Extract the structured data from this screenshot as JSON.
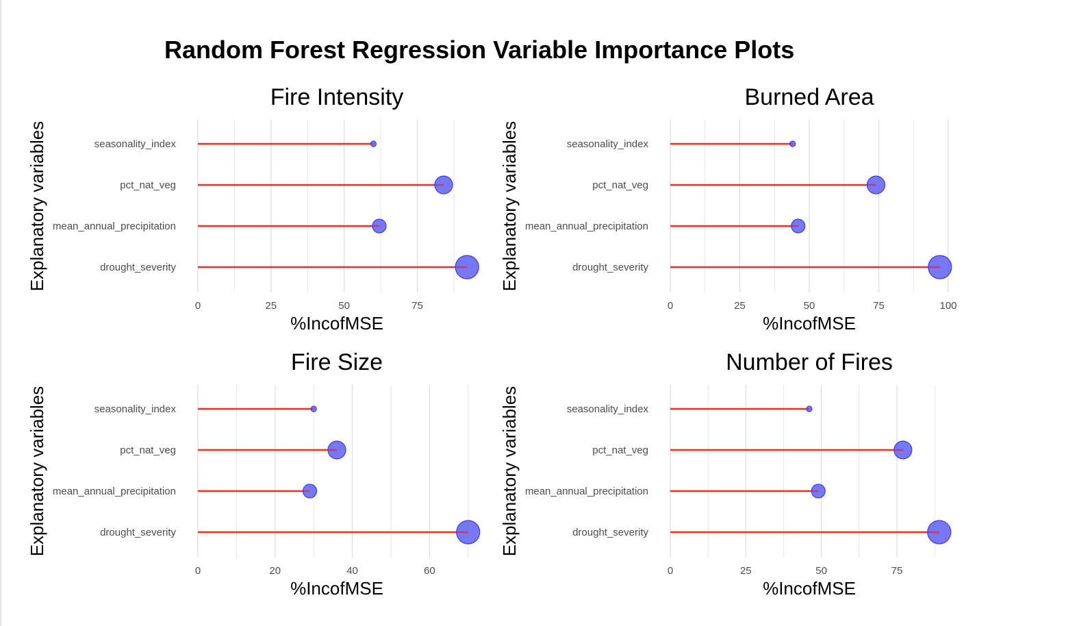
{
  "title": "Random Forest Regression Variable Importance Plots",
  "colors": {
    "stem": "#ff2a1a",
    "point_fill": "#5a5af0",
    "point_stroke": "#3a3af0",
    "grid": "#dcdcdc"
  },
  "chart_data": [
    {
      "type": "lollipop",
      "title": "Fire Intensity",
      "xlabel": "%IncofMSE",
      "ylabel": "Explanatory variables",
      "categories": [
        "seasonality_index",
        "pct_nat_veg",
        "mean_annual_precipitation",
        "drought_severity"
      ],
      "values": [
        60,
        84,
        62,
        92
      ],
      "xlim": [
        0,
        95
      ],
      "xticks": [
        0,
        25,
        50,
        75
      ],
      "grid": true
    },
    {
      "type": "lollipop",
      "title": "Burned Area",
      "xlabel": "%IncofMSE",
      "ylabel": "Explanatory variables",
      "categories": [
        "seasonality_index",
        "pct_nat_veg",
        "mean_annual_precipitation",
        "drought_severity"
      ],
      "values": [
        44,
        74,
        46,
        97
      ],
      "xlim": [
        0,
        100
      ],
      "xticks": [
        0,
        25,
        50,
        75,
        100
      ],
      "grid": true
    },
    {
      "type": "lollipop",
      "title": "Fire Size",
      "xlabel": "%IncofMSE",
      "ylabel": "Explanatory variables",
      "categories": [
        "seasonality_index",
        "pct_nat_veg",
        "mean_annual_precipitation",
        "drought_severity"
      ],
      "values": [
        30,
        36,
        29,
        70
      ],
      "xlim": [
        0,
        72
      ],
      "xticks": [
        0,
        20,
        40,
        60
      ],
      "grid": true
    },
    {
      "type": "lollipop",
      "title": "Number of Fires",
      "xlabel": "%IncofMSE",
      "ylabel": "Explanatory variables",
      "categories": [
        "seasonality_index",
        "pct_nat_veg",
        "mean_annual_precipitation",
        "drought_severity"
      ],
      "values": [
        46,
        77,
        49,
        89
      ],
      "xlim": [
        0,
        92
      ],
      "xticks": [
        0,
        25,
        50,
        75
      ],
      "grid": true
    }
  ]
}
